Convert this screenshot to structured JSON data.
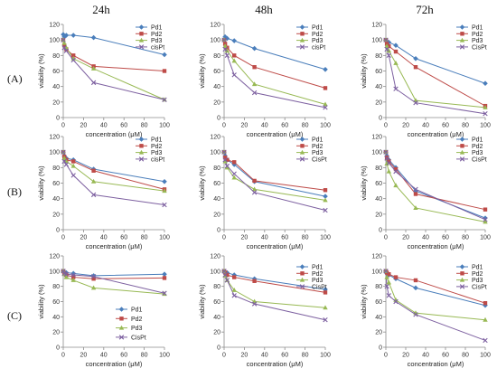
{
  "column_headers": [
    "24h",
    "48h",
    "72h"
  ],
  "row_labels": [
    "(A)",
    "(B)",
    "(C)"
  ],
  "chart_data": [
    {
      "type": "line",
      "x": [
        0,
        1,
        3,
        10,
        30,
        100
      ],
      "xlabel": "concentration (μM)",
      "ylabel": "viability (%)",
      "xlim": [
        0,
        100
      ],
      "ylim": [
        0,
        120
      ],
      "xticks": [
        0,
        20,
        40,
        60,
        80,
        100
      ],
      "yticks": [
        0,
        20,
        40,
        60,
        80,
        100,
        120
      ],
      "grid": false,
      "legend": "top-right",
      "series": [
        {
          "name": "Pd1",
          "color": "#4a7ebb",
          "marker": "diamond",
          "values": [
            107,
            104,
            106,
            106,
            103,
            81
          ]
        },
        {
          "name": "Pd2",
          "color": "#be4b48",
          "marker": "square",
          "values": [
            100,
            93,
            88,
            80,
            66,
            60
          ]
        },
        {
          "name": "Pd3",
          "color": "#98b954",
          "marker": "triangle",
          "values": [
            100,
            96,
            90,
            76,
            63,
            23
          ]
        },
        {
          "name": "cisPt",
          "color": "#7d60a0",
          "marker": "cross",
          "values": [
            100,
            90,
            86,
            74,
            45,
            23
          ]
        }
      ]
    },
    {
      "type": "line",
      "x": [
        0,
        1,
        3,
        10,
        30,
        100
      ],
      "xlabel": "concentration (μM)",
      "ylabel": "viability (%)",
      "xlim": [
        0,
        100
      ],
      "ylim": [
        0,
        120
      ],
      "xticks": [
        0,
        20,
        40,
        60,
        80,
        100
      ],
      "yticks": [
        0,
        20,
        40,
        60,
        80,
        100,
        120
      ],
      "grid": false,
      "legend": "top-right",
      "series": [
        {
          "name": "Pd1",
          "color": "#4a7ebb",
          "marker": "diamond",
          "values": [
            100,
            104,
            102,
            99,
            89,
            62
          ]
        },
        {
          "name": "Pd2",
          "color": "#be4b48",
          "marker": "square",
          "values": [
            100,
            95,
            90,
            80,
            65,
            38
          ]
        },
        {
          "name": "Pd3",
          "color": "#98b954",
          "marker": "triangle",
          "values": [
            100,
            92,
            86,
            73,
            43,
            17
          ]
        },
        {
          "name": "cisPt",
          "color": "#7d60a0",
          "marker": "cross",
          "values": [
            100,
            88,
            80,
            55,
            32,
            13
          ]
        }
      ]
    },
    {
      "type": "line",
      "x": [
        0,
        1,
        3,
        10,
        30,
        100
      ],
      "xlabel": "concentration (μM)",
      "ylabel": "viability (%)",
      "xlim": [
        0,
        100
      ],
      "ylim": [
        0,
        120
      ],
      "xticks": [
        0,
        20,
        40,
        60,
        80,
        100
      ],
      "yticks": [
        0,
        20,
        40,
        60,
        80,
        100,
        120
      ],
      "grid": false,
      "legend": "top-right",
      "series": [
        {
          "name": "Pd1",
          "color": "#4a7ebb",
          "marker": "diamond",
          "values": [
            100,
            98,
            97,
            93,
            76,
            44
          ]
        },
        {
          "name": "Pd2",
          "color": "#be4b48",
          "marker": "square",
          "values": [
            100,
            95,
            92,
            85,
            65,
            15
          ]
        },
        {
          "name": "Pd3",
          "color": "#98b954",
          "marker": "triangle",
          "values": [
            100,
            92,
            86,
            70,
            22,
            13
          ]
        },
        {
          "name": "CisPt",
          "color": "#7d60a0",
          "marker": "cross",
          "values": [
            100,
            88,
            80,
            37,
            19,
            5
          ]
        }
      ]
    },
    {
      "type": "line",
      "x": [
        0,
        1,
        3,
        10,
        30,
        100
      ],
      "xlabel": "concentration (μM)",
      "ylabel": "viability (%)",
      "xlim": [
        0,
        100
      ],
      "ylim": [
        0,
        120
      ],
      "xticks": [
        0,
        20,
        40,
        60,
        80,
        100
      ],
      "yticks": [
        0,
        20,
        40,
        60,
        80,
        100,
        120
      ],
      "grid": false,
      "legend": "top-right",
      "series": [
        {
          "name": "Pd1",
          "color": "#4a7ebb",
          "marker": "diamond",
          "values": [
            100,
            95,
            92,
            90,
            78,
            62
          ]
        },
        {
          "name": "Pd2",
          "color": "#be4b48",
          "marker": "square",
          "values": [
            100,
            94,
            90,
            88,
            76,
            52
          ]
        },
        {
          "name": "Pd3",
          "color": "#98b954",
          "marker": "triangle",
          "values": [
            100,
            92,
            88,
            82,
            62,
            50
          ]
        },
        {
          "name": "cisPt",
          "color": "#7d60a0",
          "marker": "cross",
          "values": [
            100,
            88,
            84,
            70,
            45,
            32
          ]
        }
      ]
    },
    {
      "type": "line",
      "x": [
        0,
        1,
        3,
        10,
        30,
        100
      ],
      "xlabel": "concentration (μM)",
      "ylabel": "viability (%)",
      "xlim": [
        0,
        100
      ],
      "ylim": [
        0,
        120
      ],
      "xticks": [
        0,
        20,
        40,
        60,
        80,
        100
      ],
      "yticks": [
        0,
        20,
        40,
        60,
        80,
        100,
        120
      ],
      "grid": false,
      "legend": "top-right",
      "series": [
        {
          "name": "Pd1",
          "color": "#4a7ebb",
          "marker": "diamond",
          "values": [
            100,
            95,
            90,
            84,
            62,
            43
          ]
        },
        {
          "name": "Pd2",
          "color": "#be4b48",
          "marker": "square",
          "values": [
            100,
            93,
            90,
            87,
            63,
            51
          ]
        },
        {
          "name": "Pd3",
          "color": "#98b954",
          "marker": "triangle",
          "values": [
            100,
            88,
            80,
            67,
            52,
            38
          ]
        },
        {
          "name": "CisPt",
          "color": "#7d60a0",
          "marker": "cross",
          "values": [
            100,
            90,
            82,
            72,
            48,
            25
          ]
        }
      ]
    },
    {
      "type": "line",
      "x": [
        0,
        1,
        3,
        10,
        30,
        100
      ],
      "xlabel": "concentration (μM)",
      "ylabel": "viability (%)",
      "xlim": [
        0,
        100
      ],
      "ylim": [
        0,
        120
      ],
      "xticks": [
        0,
        20,
        40,
        60,
        80,
        100
      ],
      "yticks": [
        0,
        20,
        40,
        60,
        80,
        100,
        120
      ],
      "grid": false,
      "legend": "top-right",
      "series": [
        {
          "name": "Pd1",
          "color": "#4a7ebb",
          "marker": "diamond",
          "values": [
            100,
            95,
            90,
            80,
            50,
            15
          ]
        },
        {
          "name": "Pd2",
          "color": "#be4b48",
          "marker": "square",
          "values": [
            100,
            93,
            88,
            78,
            46,
            26
          ]
        },
        {
          "name": "Pd3",
          "color": "#98b954",
          "marker": "triangle",
          "values": [
            100,
            85,
            75,
            57,
            28,
            10
          ]
        },
        {
          "name": "CisPt",
          "color": "#7d60a0",
          "marker": "cross",
          "values": [
            100,
            92,
            86,
            75,
            52,
            13
          ]
        }
      ]
    },
    {
      "type": "line",
      "x": [
        0,
        1,
        3,
        10,
        30,
        100
      ],
      "xlabel": "concentration (μM)",
      "ylabel": "viability (%)",
      "xlim": [
        0,
        100
      ],
      "ylim": [
        0,
        120
      ],
      "xticks": [
        0,
        20,
        40,
        60,
        80,
        100
      ],
      "yticks": [
        0,
        20,
        40,
        60,
        80,
        100,
        120
      ],
      "grid": false,
      "legend": "lower-center",
      "series": [
        {
          "name": "Pd1",
          "color": "#4a7ebb",
          "marker": "diamond",
          "values": [
            100,
            99,
            98,
            97,
            94,
            96
          ]
        },
        {
          "name": "Pd2",
          "color": "#be4b48",
          "marker": "square",
          "values": [
            100,
            97,
            95,
            92,
            90,
            91
          ]
        },
        {
          "name": "Pd3",
          "color": "#98b954",
          "marker": "triangle",
          "values": [
            100,
            96,
            92,
            88,
            78,
            70
          ]
        },
        {
          "name": "CisPt",
          "color": "#7d60a0",
          "marker": "cross",
          "values": [
            100,
            97,
            96,
            95,
            93,
            71
          ]
        }
      ]
    },
    {
      "type": "line",
      "x": [
        0,
        1,
        3,
        10,
        30,
        100
      ],
      "xlabel": "concentration (μM)",
      "ylabel": "viability (%)",
      "xlim": [
        0,
        100
      ],
      "ylim": [
        0,
        120
      ],
      "xticks": [
        0,
        20,
        40,
        60,
        80,
        100
      ],
      "yticks": [
        0,
        20,
        40,
        60,
        80,
        100,
        120
      ],
      "grid": false,
      "legend": "top-right",
      "series": [
        {
          "name": "Pd1",
          "color": "#4a7ebb",
          "marker": "diamond",
          "values": [
            100,
            99,
            98,
            95,
            90,
            76
          ]
        },
        {
          "name": "Pd2",
          "color": "#be4b48",
          "marker": "square",
          "values": [
            100,
            98,
            95,
            92,
            87,
            72
          ]
        },
        {
          "name": "Pd3",
          "color": "#98b954",
          "marker": "triangle",
          "values": [
            100,
            94,
            88,
            75,
            60,
            52
          ]
        },
        {
          "name": "CisPt",
          "color": "#7d60a0",
          "marker": "cross",
          "values": [
            100,
            95,
            88,
            68,
            57,
            36
          ]
        }
      ]
    },
    {
      "type": "line",
      "x": [
        0,
        1,
        3,
        10,
        30,
        100
      ],
      "xlabel": "concentration (μM)",
      "ylabel": "viability (%)",
      "xlim": [
        0,
        100
      ],
      "ylim": [
        0,
        120
      ],
      "xticks": [
        0,
        20,
        40,
        60,
        80,
        100
      ],
      "yticks": [
        0,
        20,
        40,
        60,
        80,
        100,
        120
      ],
      "grid": false,
      "legend": "top-right",
      "series": [
        {
          "name": "Pd1",
          "color": "#4a7ebb",
          "marker": "diamond",
          "values": [
            100,
            97,
            95,
            90,
            78,
            55
          ]
        },
        {
          "name": "Pd2",
          "color": "#be4b48",
          "marker": "square",
          "values": [
            100,
            98,
            96,
            92,
            88,
            58
          ]
        },
        {
          "name": "Pd3",
          "color": "#98b954",
          "marker": "triangle",
          "values": [
            100,
            92,
            85,
            62,
            45,
            36
          ]
        },
        {
          "name": "CisPt",
          "color": "#7d60a0",
          "marker": "cross",
          "values": [
            100,
            80,
            68,
            60,
            43,
            9
          ]
        }
      ]
    }
  ]
}
